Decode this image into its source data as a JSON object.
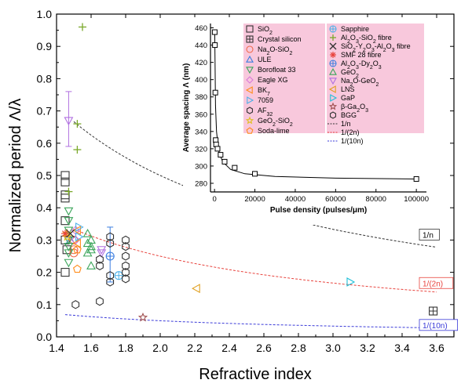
{
  "chart_data": [
    {
      "type": "scatter",
      "xlabel": "Refractive index",
      "ylabel": "Normalized period Λ/λ",
      "xlim": [
        1.4,
        3.7
      ],
      "ylim": [
        0.0,
        1.0
      ],
      "x_ticks": [
        "1.4",
        "1.6",
        "1.8",
        "2.0",
        "2.2",
        "2.4",
        "2.6",
        "2.8",
        "3.0",
        "3.2",
        "3.4",
        "3.6"
      ],
      "x_tick_values": [
        1.4,
        1.6,
        1.8,
        2.0,
        2.2,
        2.4,
        2.6,
        2.8,
        3.0,
        3.2,
        3.4,
        3.6
      ],
      "y_ticks": [
        "0.0",
        "0.1",
        "0.2",
        "0.3",
        "0.4",
        "0.5",
        "0.6",
        "0.7",
        "0.8",
        "0.9",
        "1.0"
      ],
      "y_tick_values": [
        0.0,
        0.1,
        0.2,
        0.3,
        0.4,
        0.5,
        0.6,
        0.7,
        0.8,
        0.9,
        1.0
      ],
      "grid": false,
      "legend_placement": "top-right (inside inset region)",
      "curves": [
        {
          "label": "1/n",
          "color": "#333333",
          "k": 1.0,
          "x_start": 1.5,
          "x_end": 3.6
        },
        {
          "label": "1/(2n)",
          "color": "#e8423c",
          "k": 0.5,
          "x_start": 1.5,
          "x_end": 3.6
        },
        {
          "label": "1/(10n)",
          "color": "#3a3ad8",
          "k": 0.1,
          "x_start": 1.45,
          "x_end": 3.6
        }
      ],
      "series": [
        {
          "name": "SiO2",
          "marker": "square",
          "color": "#333333",
          "points": [
            [
              1.45,
              0.5
            ],
            [
              1.45,
              0.48
            ],
            [
              1.45,
              0.44
            ],
            [
              1.45,
              0.43
            ],
            [
              1.45,
              0.36
            ],
            [
              1.45,
              0.3
            ],
            [
              1.45,
              0.2
            ],
            [
              1.46,
              0.27
            ]
          ]
        },
        {
          "name": "Crystal silicon",
          "marker": "square-plus",
          "color": "#333333",
          "points": [
            [
              3.58,
              0.08
            ]
          ]
        },
        {
          "name": "Na2O-SiO2",
          "marker": "circle",
          "color": "#f06a4a",
          "points": [
            [
              1.5,
              0.3
            ],
            [
              1.5,
              0.27
            ],
            [
              1.5,
              0.26
            ]
          ]
        },
        {
          "name": "ULE",
          "marker": "triangle-up",
          "color": "#3a7de0",
          "points": [
            [
              1.48,
              0.3
            ]
          ]
        },
        {
          "name": "Borofloat 33",
          "marker": "triangle-down",
          "color": "#3aa55a",
          "points": [
            [
              1.47,
              0.39
            ],
            [
              1.47,
              0.36
            ],
            [
              1.47,
              0.33
            ],
            [
              1.47,
              0.3
            ],
            [
              1.47,
              0.28
            ],
            [
              1.47,
              0.26
            ],
            [
              1.47,
              0.23
            ]
          ]
        },
        {
          "name": "Eagle XG",
          "marker": "diamond",
          "color": "#d878d8",
          "points": [
            [
              1.51,
              0.33
            ],
            [
              1.51,
              0.3
            ]
          ]
        },
        {
          "name": "BK7",
          "marker": "triangle-left",
          "color": "#ff8c1a",
          "points": [
            [
              1.52,
              0.33
            ],
            [
              1.52,
              0.29
            ]
          ]
        },
        {
          "name": "7059",
          "marker": "triangle-right",
          "color": "#4cb0e8",
          "points": [
            [
              1.53,
              0.34
            ],
            [
              1.53,
              0.31
            ]
          ]
        },
        {
          "name": "AF32",
          "marker": "hexagon",
          "color": "#333333",
          "points": [
            [
              1.51,
              0.1
            ],
            [
              1.65,
              0.11
            ]
          ]
        },
        {
          "name": "GeO2-SiO2",
          "marker": "star",
          "color": "#e0c020",
          "points": [
            [
              1.46,
              0.31
            ],
            [
              1.46,
              0.32
            ]
          ]
        },
        {
          "name": "Soda-lime",
          "marker": "pentagon",
          "color": "#ff8c1a",
          "points": [
            [
              1.52,
              0.27
            ],
            [
              1.52,
              0.21
            ]
          ]
        },
        {
          "name": "Sapphire",
          "marker": "circle-plus",
          "color": "#4cb0e8",
          "points": [
            [
              1.76,
              0.19
            ]
          ]
        },
        {
          "name": "Al2O3-SiO2 fibre",
          "marker": "plus",
          "color": "#7aa82a",
          "points": [
            [
              1.55,
              0.96
            ],
            [
              1.52,
              0.66
            ],
            [
              1.52,
              0.58
            ],
            [
              1.47,
              0.45
            ]
          ]
        },
        {
          "name": "SiO2-Y2O3-Al2O3 fibre",
          "marker": "x",
          "color": "#333333",
          "points": [
            [
              1.48,
              0.32
            ]
          ]
        },
        {
          "name": "SMF 28 fibre",
          "marker": "asterisk",
          "color": "#e8423c",
          "points": [
            [
              1.45,
              0.32
            ]
          ]
        },
        {
          "name": "Al2O3-Dy2O3",
          "marker": "circle-plus",
          "color": "#3a7de0",
          "points": [
            [
              1.71,
              0.25
            ]
          ]
        },
        {
          "name": "GeO2",
          "marker": "triangle-up",
          "color": "#3aa55a",
          "points": [
            [
              1.6,
              0.3
            ],
            [
              1.6,
              0.28
            ],
            [
              1.6,
              0.27
            ],
            [
              1.6,
              0.22
            ],
            [
              1.58,
              0.32
            ],
            [
              1.58,
              0.29
            ],
            [
              1.58,
              0.26
            ]
          ]
        },
        {
          "name": "Na2O-GeO2",
          "marker": "triangle-down",
          "color": "#b070e0",
          "points": [
            [
              1.47,
              0.67
            ],
            [
              1.66,
              0.27
            ],
            [
              1.66,
              0.26
            ]
          ]
        },
        {
          "name": "LNS",
          "marker": "triangle-left",
          "color": "#e0a020",
          "points": [
            [
              2.21,
              0.15
            ]
          ]
        },
        {
          "name": "GaP",
          "marker": "triangle-right",
          "color": "#20c0d8",
          "points": [
            [
              3.1,
              0.17
            ]
          ]
        },
        {
          "name": "β-Ga2O3",
          "marker": "star",
          "color": "#a05050",
          "points": [
            [
              1.9,
              0.06
            ]
          ]
        },
        {
          "name": "BGG",
          "marker": "hexagon",
          "color": "#333333",
          "points": [
            [
              1.65,
              0.24
            ],
            [
              1.65,
              0.22
            ],
            [
              1.71,
              0.31
            ],
            [
              1.71,
              0.29
            ],
            [
              1.71,
              0.19
            ],
            [
              1.71,
              0.17
            ],
            [
              1.8,
              0.3
            ],
            [
              1.8,
              0.28
            ],
            [
              1.8,
              0.25
            ],
            [
              1.8,
              0.22
            ],
            [
              1.8,
              0.2
            ],
            [
              1.8,
              0.18
            ]
          ]
        }
      ],
      "error_bars": [
        {
          "x": 1.47,
          "y": 0.67,
          "ylow": 0.59,
          "yhigh": 0.76,
          "color": "#b070e0"
        },
        {
          "x": 1.71,
          "y": 0.25,
          "ylow": 0.17,
          "yhigh": 0.34,
          "color": "#3a7de0"
        }
      ],
      "legend": {
        "col1": [
          "SiO2",
          "Crystal silicon",
          "Na2O-SiO2",
          "ULE",
          "Borofloat 33",
          "Eagle XG",
          "BK7",
          "7059",
          "AF32",
          "GeO2-SiO2",
          "Soda-lime"
        ],
        "col2": [
          "Sapphire",
          "Al2O3-SiO2 fibre",
          "SiO2-Y2O3-Al2O3 fibre",
          "SMF 28 fibre",
          "Al2O3-Dy2O3",
          "GeO2",
          "Na2O-GeO2",
          "LNS",
          "GaP",
          "β-Ga2O3",
          "BGG",
          "1/n",
          "1/(2n)",
          "1/(10n)"
        ],
        "background": "#f8c8dc"
      }
    },
    {
      "type": "line",
      "xlabel": "Pulse density (pulses/μm)",
      "ylabel": "Average spacing Λ (nm)",
      "xlim": [
        -2000,
        105000
      ],
      "ylim": [
        270,
        465
      ],
      "x_ticks": [
        "0",
        "20000",
        "40000",
        "60000",
        "80000",
        "100000"
      ],
      "x_tick_values": [
        0,
        20000,
        40000,
        60000,
        80000,
        100000
      ],
      "y_ticks": [
        "280",
        "300",
        "320",
        "340",
        "360",
        "380",
        "400",
        "420",
        "440",
        "460"
      ],
      "y_tick_values": [
        280,
        300,
        320,
        340,
        360,
        380,
        400,
        420,
        440,
        460
      ],
      "points": [
        [
          100,
          455
        ],
        [
          200,
          440
        ],
        [
          400,
          385
        ],
        [
          600,
          330
        ],
        [
          800,
          325
        ],
        [
          1500,
          320
        ],
        [
          3000,
          313
        ],
        [
          5000,
          305
        ],
        [
          10000,
          298
        ],
        [
          20000,
          291
        ],
        [
          100000,
          285
        ]
      ],
      "fit": [
        [
          100,
          458
        ],
        [
          500,
          370
        ],
        [
          1000,
          340
        ],
        [
          2000,
          318
        ],
        [
          4000,
          305
        ],
        [
          8000,
          296
        ],
        [
          15000,
          291
        ],
        [
          30000,
          288
        ],
        [
          60000,
          286
        ],
        [
          100000,
          285
        ]
      ]
    }
  ]
}
